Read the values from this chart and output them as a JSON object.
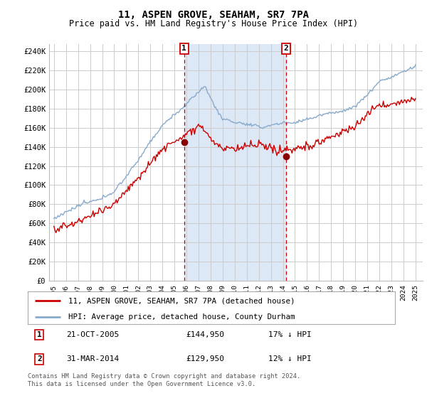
{
  "title": "11, ASPEN GROVE, SEAHAM, SR7 7PA",
  "subtitle": "Price paid vs. HM Land Registry's House Price Index (HPI)",
  "ylim": [
    0,
    248000
  ],
  "yticks": [
    0,
    20000,
    40000,
    60000,
    80000,
    100000,
    120000,
    140000,
    160000,
    180000,
    200000,
    220000,
    240000
  ],
  "ytick_labels": [
    "£0",
    "£20K",
    "£40K",
    "£60K",
    "£80K",
    "£100K",
    "£120K",
    "£140K",
    "£160K",
    "£180K",
    "£200K",
    "£220K",
    "£240K"
  ],
  "marker1_year": 2005.8,
  "marker2_year": 2014.25,
  "marker1_price": 144950,
  "marker2_price": 129950,
  "legend_line1": "11, ASPEN GROVE, SEAHAM, SR7 7PA (detached house)",
  "legend_line2": "HPI: Average price, detached house, County Durham",
  "annotation1_date": "21-OCT-2005",
  "annotation1_price": "£144,950",
  "annotation1_pct": "17% ↓ HPI",
  "annotation2_date": "31-MAR-2014",
  "annotation2_price": "£129,950",
  "annotation2_pct": "12% ↓ HPI",
  "footer": "Contains HM Land Registry data © Crown copyright and database right 2024.\nThis data is licensed under the Open Government Licence v3.0.",
  "line_color_red": "#cc0000",
  "line_color_blue": "#88aacc",
  "shade_color": "#dce8f5",
  "bg_color": "#ffffff",
  "grid_color": "#cccccc",
  "dot_color": "#880000"
}
